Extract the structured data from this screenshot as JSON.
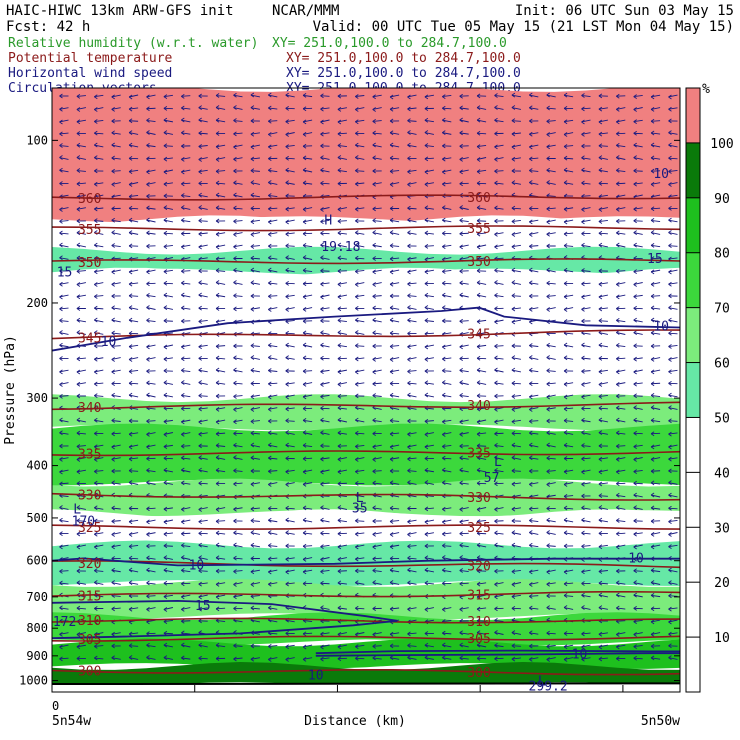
{
  "header": {
    "model_line": "HAIC-HIWC 13km ARW-GFS init",
    "org": "NCAR/MMM",
    "init": "Init: 06 UTC Sun 03 May 15",
    "fcst": "Fcst:   42 h",
    "valid": "Valid: 00 UTC Tue 05 May 15 (21 LST Mon 04 May 15)"
  },
  "fields": [
    {
      "label": "Relative humidity (w.r.t. water)",
      "xy": "XY= 251.0,100.0 to 284.7,100.0",
      "color": "#2a9a2a"
    },
    {
      "label": "Potential temperature",
      "xy": "XY= 251.0,100.0 to 284.7,100.0",
      "color": "#8b1a1a"
    },
    {
      "label": "Horizontal wind speed",
      "xy": "XY= 251.0,100.0 to 284.7,100.0",
      "color": "#1a1a80"
    },
    {
      "label": "Circulation vectors",
      "xy": "XY= 251.0,100.0 to 284.7,100.0",
      "color": "#1a1a80"
    }
  ],
  "chart_data": {
    "type": "heatmap",
    "ylabel": "Pressure (hPa)",
    "xlabel": "Distance (km)",
    "x_start_label": "0",
    "x_left_label": "5n54w",
    "x_right_label": "5n50w",
    "y_scale": "log",
    "y_ticks": [
      100,
      200,
      300,
      400,
      500,
      600,
      700,
      800,
      900,
      1000
    ],
    "ylim": [
      1050,
      80
    ],
    "colorbar": {
      "unit": "%",
      "ticks": [
        10,
        20,
        30,
        40,
        50,
        60,
        70,
        80,
        90,
        100
      ],
      "levels": [
        {
          "from": 0,
          "to": 50,
          "color": "#ffffff"
        },
        {
          "from": 50,
          "to": 60,
          "color": "#66e8a6"
        },
        {
          "from": 60,
          "to": 70,
          "color": "#7cec7c"
        },
        {
          "from": 70,
          "to": 80,
          "color": "#3cd83c"
        },
        {
          "from": 80,
          "to": 90,
          "color": "#1ec01e"
        },
        {
          "from": 90,
          "to": 100,
          "color": "#0a7a0a"
        },
        {
          "from": 100,
          "to": 110,
          "color": "#f08080"
        }
      ]
    },
    "rh_layers": [
      {
        "top": 80,
        "bottom": 140,
        "rh": 105
      },
      {
        "top": 140,
        "bottom": 160,
        "rh": 40
      },
      {
        "top": 160,
        "bottom": 175,
        "rh": 55
      },
      {
        "top": 175,
        "bottom": 255,
        "rh": 30
      },
      {
        "top": 255,
        "bottom": 300,
        "rh": 45
      },
      {
        "top": 300,
        "bottom": 340,
        "rh": 65
      },
      {
        "top": 340,
        "bottom": 430,
        "rh": 75
      },
      {
        "top": 430,
        "bottom": 490,
        "rh": 65
      },
      {
        "top": 490,
        "bottom": 560,
        "rh": 35
      },
      {
        "top": 560,
        "bottom": 660,
        "rh": 55
      },
      {
        "top": 660,
        "bottom": 760,
        "rh": 65
      },
      {
        "top": 760,
        "bottom": 850,
        "rh": 75
      },
      {
        "top": 850,
        "bottom": 940,
        "rh": 85
      },
      {
        "top": 940,
        "bottom": 1020,
        "rh": 95
      }
    ],
    "theta_contours": [
      {
        "value": 300,
        "p_left": 958,
        "p_right": 968
      },
      {
        "value": 305,
        "p_left": 838,
        "p_right": 832
      },
      {
        "value": 310,
        "p_left": 773,
        "p_right": 776
      },
      {
        "value": 315,
        "p_left": 697,
        "p_right": 690
      },
      {
        "value": 320,
        "p_left": 605,
        "p_right": 615
      },
      {
        "value": 325,
        "p_left": 520,
        "p_right": 520
      },
      {
        "value": 330,
        "p_left": 452,
        "p_right": 460
      },
      {
        "value": 335,
        "p_left": 380,
        "p_right": 378
      },
      {
        "value": 340,
        "p_left": 312,
        "p_right": 308
      },
      {
        "value": 345,
        "p_left": 232,
        "p_right": 226
      },
      {
        "value": 350,
        "p_left": 168,
        "p_right": 167
      },
      {
        "value": 355,
        "p_left": 146,
        "p_right": 145
      },
      {
        "value": 360,
        "p_left": 128,
        "p_right": 127
      }
    ],
    "wind_labels": [
      {
        "text": "15",
        "p": 175,
        "x_frac": 0.02
      },
      {
        "text": "10",
        "p": 235,
        "x_frac": 0.09
      },
      {
        "text": "10",
        "p": 220,
        "x_frac": 0.97
      },
      {
        "text": "15",
        "p": 165,
        "x_frac": 0.96
      },
      {
        "text": "10",
        "p": 115,
        "x_frac": 0.97
      },
      {
        "text": "10",
        "p": 610,
        "x_frac": 0.23
      },
      {
        "text": "10",
        "p": 592,
        "x_frac": 0.93
      },
      {
        "text": "15",
        "p": 725,
        "x_frac": 0.24
      },
      {
        "text": "10",
        "p": 892,
        "x_frac": 0.84
      },
      {
        "text": "10",
        "p": 975,
        "x_frac": 0.42
      }
    ],
    "extrema": [
      {
        "text": "L",
        "p": 480,
        "x_frac": 0.04
      },
      {
        "text": "170",
        "p": 505,
        "x_frac": 0.05
      },
      {
        "text": "L",
        "p": 457,
        "x_frac": 0.49
      },
      {
        "text": "35",
        "p": 478,
        "x_frac": 0.49
      },
      {
        "text": "L",
        "p": 392,
        "x_frac": 0.71
      },
      {
        "text": "57",
        "p": 420,
        "x_frac": 0.7
      },
      {
        "text": "H",
        "p": 140,
        "x_frac": 0.44
      },
      {
        "text": "19.18",
        "p": 157,
        "x_frac": 0.46
      },
      {
        "text": "L",
        "p": 1000,
        "x_frac": 0.78
      },
      {
        "text": "299.2",
        "p": 1022,
        "x_frac": 0.79
      },
      {
        "text": "172",
        "p": 775,
        "x_frac": 0.02
      }
    ],
    "wind_speed_contours": [
      {
        "value": 10,
        "path": [
          [
            0.0,
            245
          ],
          [
            0.12,
            232
          ],
          [
            0.28,
            218
          ],
          [
            0.45,
            212
          ],
          [
            0.62,
            207
          ],
          [
            0.68,
            204
          ],
          [
            0.72,
            212
          ],
          [
            0.85,
            220
          ],
          [
            1.0,
            222
          ]
        ]
      },
      {
        "value": 10,
        "path": [
          [
            0.0,
            600
          ],
          [
            0.05,
            594
          ],
          [
            0.2,
            612
          ],
          [
            0.45,
            608
          ],
          [
            0.6,
            600
          ],
          [
            0.8,
            595
          ],
          [
            1.0,
            595
          ]
        ]
      },
      {
        "value": 15,
        "path": [
          [
            0.0,
            718
          ],
          [
            0.2,
            712
          ],
          [
            0.35,
            722
          ],
          [
            0.5,
            760
          ],
          [
            0.55,
            775
          ],
          [
            0.48,
            790
          ],
          [
            0.3,
            818
          ],
          [
            0.1,
            830
          ],
          [
            0.0,
            835
          ]
        ]
      },
      {
        "value": 10,
        "path": [
          [
            0.42,
            890
          ],
          [
            0.55,
            882
          ],
          [
            0.75,
            880
          ],
          [
            0.95,
            883
          ],
          [
            1.0,
            883
          ]
        ]
      },
      {
        "value": 10,
        "path": [
          [
            0.42,
            900
          ],
          [
            0.55,
            897
          ],
          [
            0.75,
            895
          ],
          [
            0.95,
            890
          ],
          [
            1.0,
            890
          ]
        ]
      }
    ],
    "terrain": {
      "p_surface_left": 1015,
      "p_surface_right": 1012
    }
  }
}
